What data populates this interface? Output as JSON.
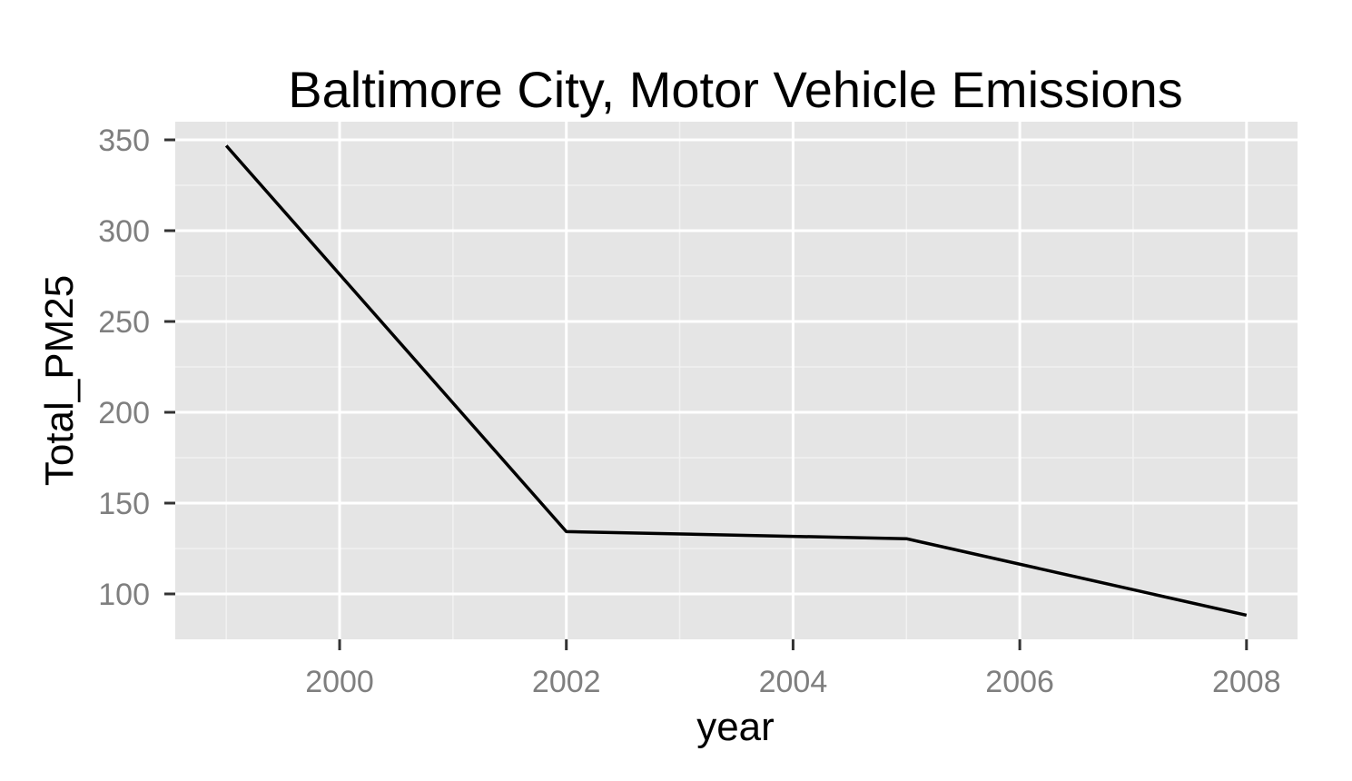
{
  "chart_data": {
    "type": "line",
    "title": "Baltimore City, Motor Vehicle Emissions",
    "xlabel": "year",
    "ylabel": "Total_PM25",
    "x": [
      1999,
      2002,
      2005,
      2008
    ],
    "series": [
      {
        "values": [
          346.8,
          134.3,
          130.4,
          88.3
        ]
      }
    ],
    "xlim": [
      1998.55,
      2008.45
    ],
    "ylim": [
      75,
      360
    ],
    "x_ticks": [
      2000,
      2002,
      2004,
      2006,
      2008
    ],
    "y_ticks": [
      100,
      150,
      200,
      250,
      300,
      350
    ],
    "x_tick_labels": [
      "2000",
      "2002",
      "2004",
      "2006",
      "2008"
    ],
    "y_tick_labels": [
      "100",
      "150",
      "200",
      "250",
      "300",
      "350"
    ],
    "grid": true,
    "colors": {
      "panel": "#e5e5e5",
      "grid": "#ffffff",
      "line": "#000000",
      "tick_text": "#7f7f7f"
    }
  }
}
